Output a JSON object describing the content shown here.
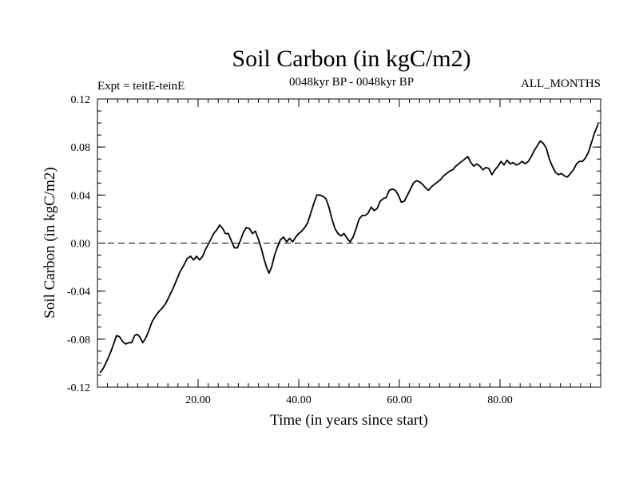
{
  "chart_data": {
    "type": "line",
    "title": "Soil Carbon (in kgC/m2)",
    "subtitle_left": "Expt = teitE-teinE",
    "subtitle_center": "0048kyr BP - 0048kyr BP",
    "subtitle_right": "ALL_MONTHS",
    "xlabel": "Time (in years since start)",
    "ylabel": "Soil Carbon (in kgC/m2)",
    "xlim": [
      0,
      100
    ],
    "ylim": [
      -0.12,
      0.12
    ],
    "x_ticks": [
      20,
      40,
      60,
      80
    ],
    "x_tick_labels": [
      "20.00",
      "40.00",
      "60.00",
      "80.00"
    ],
    "y_ticks": [
      -0.12,
      -0.08,
      -0.04,
      0.0,
      0.04,
      0.08,
      0.12
    ],
    "y_tick_labels": [
      "-0.12",
      "-0.08",
      "-0.04",
      "0.00",
      "0.04",
      "0.08",
      "0.12"
    ],
    "reference_line": {
      "y": 0.0,
      "style": "dashed"
    },
    "series": [
      {
        "name": "Soil Carbon",
        "color": "#000000",
        "points": [
          [
            0.5,
            -0.108
          ],
          [
            1.2,
            -0.104
          ],
          [
            2.0,
            -0.097
          ],
          [
            2.7,
            -0.09
          ],
          [
            3.3,
            -0.083
          ],
          [
            3.8,
            -0.077
          ],
          [
            4.4,
            -0.078
          ],
          [
            5.0,
            -0.082
          ],
          [
            5.6,
            -0.084
          ],
          [
            6.2,
            -0.083
          ],
          [
            6.8,
            -0.083
          ],
          [
            7.4,
            -0.077
          ],
          [
            7.9,
            -0.076
          ],
          [
            8.4,
            -0.078
          ],
          [
            9.0,
            -0.083
          ],
          [
            9.6,
            -0.079
          ],
          [
            10.2,
            -0.073
          ],
          [
            10.8,
            -0.066
          ],
          [
            11.5,
            -0.061
          ],
          [
            12.2,
            -0.057
          ],
          [
            12.9,
            -0.054
          ],
          [
            13.6,
            -0.05
          ],
          [
            14.3,
            -0.044
          ],
          [
            15.0,
            -0.038
          ],
          [
            15.7,
            -0.031
          ],
          [
            16.4,
            -0.024
          ],
          [
            17.1,
            -0.019
          ],
          [
            17.8,
            -0.013
          ],
          [
            18.5,
            -0.011
          ],
          [
            19.1,
            -0.014
          ],
          [
            19.7,
            -0.011
          ],
          [
            20.3,
            -0.014
          ],
          [
            20.9,
            -0.011
          ],
          [
            21.4,
            -0.006
          ],
          [
            21.9,
            -0.002
          ],
          [
            22.5,
            0.003
          ],
          [
            23.1,
            0.008
          ],
          [
            23.7,
            0.011
          ],
          [
            24.3,
            0.015
          ],
          [
            24.9,
            0.012
          ],
          [
            25.4,
            0.008
          ],
          [
            26.0,
            0.008
          ],
          [
            26.6,
            0.002
          ],
          [
            27.2,
            -0.004
          ],
          [
            27.8,
            -0.004
          ],
          [
            28.4,
            0.002
          ],
          [
            29.0,
            0.009
          ],
          [
            29.6,
            0.013
          ],
          [
            30.2,
            0.012
          ],
          [
            30.8,
            0.008
          ],
          [
            31.4,
            0.01
          ],
          [
            32.0,
            0.003
          ],
          [
            32.6,
            -0.005
          ],
          [
            33.1,
            -0.013
          ],
          [
            33.6,
            -0.02
          ],
          [
            34.1,
            -0.025
          ],
          [
            34.6,
            -0.02
          ],
          [
            35.2,
            -0.01
          ],
          [
            35.8,
            -0.003
          ],
          [
            36.4,
            0.003
          ],
          [
            37.0,
            0.005
          ],
          [
            37.6,
            0.001
          ],
          [
            38.2,
            0.004
          ],
          [
            38.8,
            0.001
          ],
          [
            39.4,
            0.005
          ],
          [
            40.0,
            0.008
          ],
          [
            40.6,
            0.01
          ],
          [
            41.2,
            0.013
          ],
          [
            41.8,
            0.017
          ],
          [
            42.4,
            0.025
          ],
          [
            43.0,
            0.033
          ],
          [
            43.6,
            0.04
          ],
          [
            44.2,
            0.04
          ],
          [
            44.8,
            0.039
          ],
          [
            45.4,
            0.037
          ],
          [
            46.0,
            0.03
          ],
          [
            46.6,
            0.02
          ],
          [
            47.2,
            0.012
          ],
          [
            47.8,
            0.008
          ],
          [
            48.4,
            0.006
          ],
          [
            49.0,
            0.008
          ],
          [
            49.6,
            0.004
          ],
          [
            50.2,
            0.001
          ],
          [
            50.8,
            0.005
          ],
          [
            51.4,
            0.012
          ],
          [
            52.0,
            0.02
          ],
          [
            52.6,
            0.023
          ],
          [
            53.2,
            0.023
          ],
          [
            53.8,
            0.025
          ],
          [
            54.4,
            0.03
          ],
          [
            55.0,
            0.027
          ],
          [
            55.6,
            0.029
          ],
          [
            56.2,
            0.035
          ],
          [
            56.8,
            0.037
          ],
          [
            57.4,
            0.038
          ],
          [
            58.0,
            0.044
          ],
          [
            58.6,
            0.045
          ],
          [
            59.2,
            0.044
          ],
          [
            59.8,
            0.04
          ],
          [
            60.4,
            0.034
          ],
          [
            61.0,
            0.035
          ],
          [
            61.6,
            0.04
          ],
          [
            62.2,
            0.045
          ],
          [
            62.8,
            0.05
          ],
          [
            63.4,
            0.052
          ],
          [
            64.0,
            0.051
          ],
          [
            64.6,
            0.049
          ],
          [
            65.2,
            0.046
          ],
          [
            65.8,
            0.044
          ],
          [
            66.4,
            0.047
          ],
          [
            67.0,
            0.049
          ],
          [
            67.6,
            0.051
          ],
          [
            68.2,
            0.053
          ],
          [
            68.8,
            0.056
          ],
          [
            69.4,
            0.058
          ],
          [
            70.0,
            0.06
          ],
          [
            70.6,
            0.061
          ],
          [
            71.2,
            0.064
          ],
          [
            71.8,
            0.066
          ],
          [
            72.4,
            0.068
          ],
          [
            73.0,
            0.07
          ],
          [
            73.6,
            0.072
          ],
          [
            74.2,
            0.067
          ],
          [
            74.8,
            0.064
          ],
          [
            75.4,
            0.066
          ],
          [
            76.0,
            0.064
          ],
          [
            76.6,
            0.061
          ],
          [
            77.2,
            0.063
          ],
          [
            77.8,
            0.062
          ],
          [
            78.4,
            0.057
          ],
          [
            79.0,
            0.061
          ],
          [
            79.6,
            0.064
          ],
          [
            80.2,
            0.068
          ],
          [
            80.8,
            0.065
          ],
          [
            81.4,
            0.069
          ],
          [
            82.0,
            0.066
          ],
          [
            82.6,
            0.067
          ],
          [
            83.2,
            0.065
          ],
          [
            83.8,
            0.066
          ],
          [
            84.4,
            0.068
          ],
          [
            85.0,
            0.066
          ],
          [
            85.6,
            0.068
          ],
          [
            86.2,
            0.072
          ],
          [
            86.8,
            0.077
          ],
          [
            87.4,
            0.081
          ],
          [
            88.0,
            0.085
          ],
          [
            88.6,
            0.083
          ],
          [
            89.2,
            0.079
          ],
          [
            89.8,
            0.07
          ],
          [
            90.4,
            0.064
          ],
          [
            91.0,
            0.059
          ],
          [
            91.6,
            0.057
          ],
          [
            92.2,
            0.058
          ],
          [
            92.8,
            0.056
          ],
          [
            93.4,
            0.055
          ],
          [
            94.0,
            0.058
          ],
          [
            94.6,
            0.061
          ],
          [
            95.2,
            0.066
          ],
          [
            95.8,
            0.068
          ],
          [
            96.4,
            0.068
          ],
          [
            97.0,
            0.071
          ],
          [
            97.6,
            0.076
          ],
          [
            98.2,
            0.084
          ],
          [
            98.8,
            0.092
          ],
          [
            99.5,
            0.099
          ]
        ]
      }
    ]
  }
}
